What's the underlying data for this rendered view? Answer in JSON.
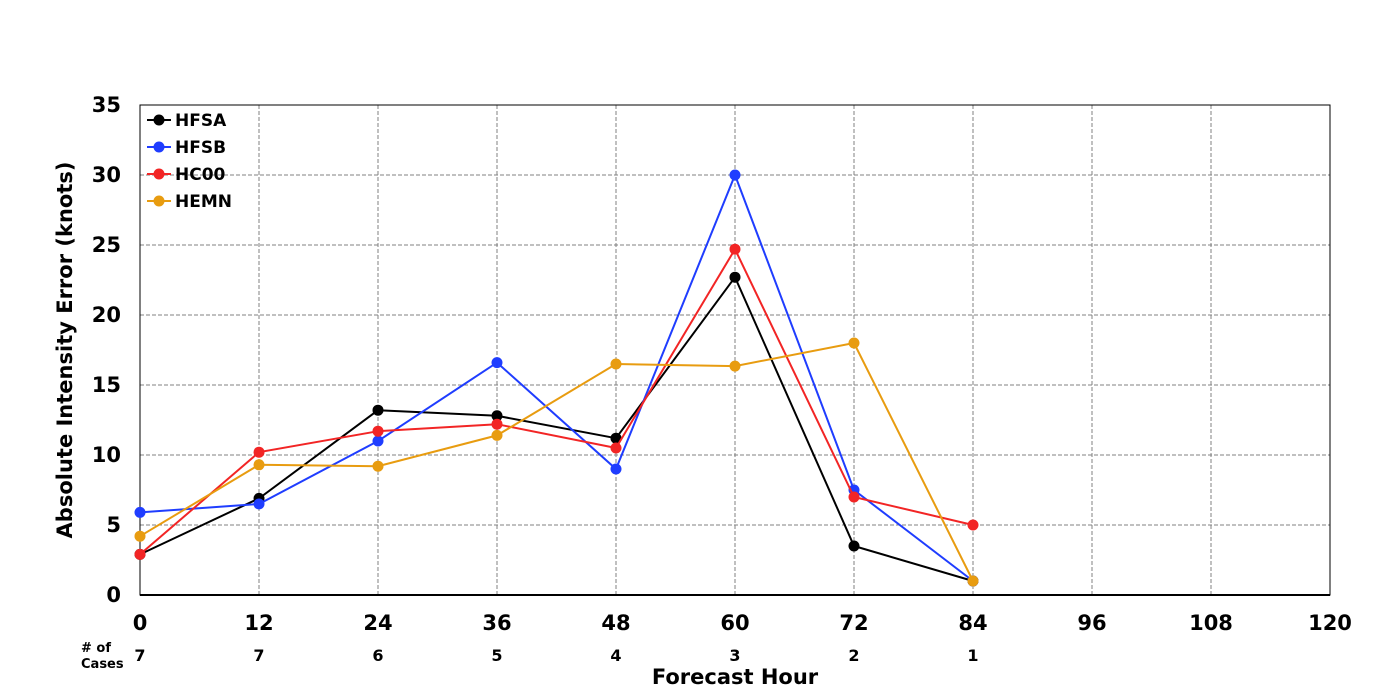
{
  "chart_data": {
    "type": "line",
    "xlabel": "Forecast Hour",
    "ylabel": "Absolute Intensity Error (knots)",
    "x_ticks": [
      "0",
      "12",
      "24",
      "36",
      "48",
      "60",
      "72",
      "84",
      "96",
      "108",
      "120"
    ],
    "y_ticks": [
      "0",
      "5",
      "10",
      "15",
      "20",
      "25",
      "30",
      "35"
    ],
    "xlim": [
      0,
      120
    ],
    "ylim": [
      0,
      35
    ],
    "grid": true,
    "legend_position": "top-left",
    "cases_label": [
      "# of",
      "Cases"
    ],
    "cases": [
      {
        "x": 0,
        "n": "7"
      },
      {
        "x": 12,
        "n": "7"
      },
      {
        "x": 24,
        "n": "6"
      },
      {
        "x": 36,
        "n": "5"
      },
      {
        "x": 48,
        "n": "4"
      },
      {
        "x": 60,
        "n": "3"
      },
      {
        "x": 72,
        "n": "2"
      },
      {
        "x": 84,
        "n": "1"
      }
    ],
    "x": [
      0,
      12,
      24,
      36,
      48,
      60,
      72,
      84
    ],
    "series": [
      {
        "name": "HFSA",
        "color": "#000000",
        "values": [
          2.9,
          6.9,
          13.2,
          12.8,
          11.2,
          22.7,
          3.5,
          1.0
        ]
      },
      {
        "name": "HFSB",
        "color": "#1f3dff",
        "values": [
          5.9,
          6.5,
          11.0,
          16.6,
          9.0,
          30.0,
          7.5,
          1.0
        ]
      },
      {
        "name": "HC00",
        "color": "#f22525",
        "values": [
          2.9,
          10.2,
          11.7,
          12.2,
          10.5,
          24.7,
          7.0,
          5.0
        ]
      },
      {
        "name": "HEMN",
        "color": "#e89c10",
        "values": [
          4.2,
          9.3,
          9.2,
          11.4,
          16.5,
          16.35,
          18.0,
          1.0
        ]
      }
    ]
  }
}
